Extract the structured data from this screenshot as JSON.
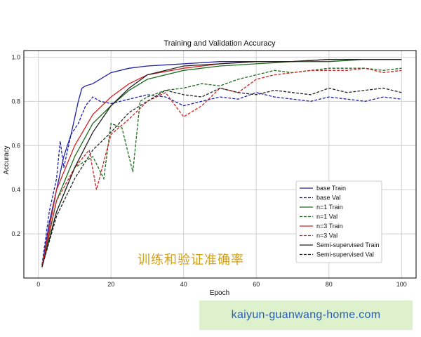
{
  "chart_data": {
    "type": "line",
    "title": "Training and Validation Accuracy",
    "xlabel": "Epoch",
    "ylabel": "Accuracy",
    "xlim": [
      -4,
      104
    ],
    "ylim": [
      0.0,
      1.03
    ],
    "xticks": [
      0,
      20,
      40,
      60,
      80,
      100
    ],
    "yticks": [
      0.2,
      0.4,
      0.6,
      0.8,
      1.0
    ],
    "grid": true,
    "legend_position": "lower-right",
    "series": [
      {
        "name": "base Train",
        "color": "#1f1fa8",
        "dash": "solid",
        "x": [
          1,
          3,
          5,
          7,
          9,
          11,
          12,
          13,
          15,
          20,
          25,
          30,
          40,
          50,
          60,
          70,
          80,
          90,
          100
        ],
        "values": [
          0.05,
          0.25,
          0.4,
          0.55,
          0.65,
          0.8,
          0.86,
          0.87,
          0.88,
          0.93,
          0.95,
          0.96,
          0.97,
          0.98,
          0.98,
          0.98,
          0.99,
          0.99,
          0.99
        ]
      },
      {
        "name": "base Val",
        "color": "#1f1fa8",
        "dash": "dashed",
        "x": [
          1,
          3,
          5,
          6,
          7,
          9,
          11,
          13,
          15,
          17,
          20,
          25,
          30,
          35,
          40,
          45,
          50,
          55,
          60,
          65,
          70,
          75,
          80,
          85,
          90,
          95,
          100
        ],
        "values": [
          0.06,
          0.3,
          0.45,
          0.62,
          0.5,
          0.65,
          0.7,
          0.78,
          0.82,
          0.8,
          0.79,
          0.81,
          0.83,
          0.82,
          0.78,
          0.8,
          0.82,
          0.81,
          0.84,
          0.82,
          0.81,
          0.8,
          0.82,
          0.81,
          0.8,
          0.82,
          0.81
        ]
      },
      {
        "name": "n=1 Train",
        "color": "#1a6b1a",
        "dash": "solid",
        "x": [
          1,
          5,
          10,
          15,
          20,
          25,
          30,
          40,
          50,
          60,
          70,
          80,
          90,
          100
        ],
        "values": [
          0.05,
          0.35,
          0.55,
          0.7,
          0.78,
          0.85,
          0.9,
          0.94,
          0.96,
          0.97,
          0.98,
          0.98,
          0.99,
          0.99
        ]
      },
      {
        "name": "n=1 Val",
        "color": "#1a6b1a",
        "dash": "dashed",
        "x": [
          1,
          5,
          10,
          15,
          18,
          20,
          23,
          26,
          28,
          30,
          35,
          40,
          45,
          50,
          55,
          60,
          65,
          70,
          75,
          80,
          85,
          90,
          95,
          100
        ],
        "values": [
          0.06,
          0.3,
          0.5,
          0.55,
          0.45,
          0.7,
          0.68,
          0.48,
          0.8,
          0.82,
          0.85,
          0.86,
          0.88,
          0.87,
          0.9,
          0.92,
          0.94,
          0.93,
          0.94,
          0.95,
          0.95,
          0.95,
          0.94,
          0.95
        ]
      },
      {
        "name": "n=3 Train",
        "color": "#d42020",
        "dash": "solid",
        "x": [
          1,
          5,
          10,
          15,
          20,
          25,
          30,
          40,
          50,
          60,
          70,
          80,
          90,
          100
        ],
        "values": [
          0.05,
          0.4,
          0.6,
          0.74,
          0.82,
          0.88,
          0.92,
          0.95,
          0.97,
          0.98,
          0.98,
          0.99,
          0.99,
          0.99
        ]
      },
      {
        "name": "n=3 Val",
        "color": "#d42020",
        "dash": "dashed",
        "x": [
          1,
          5,
          10,
          14,
          16,
          20,
          25,
          30,
          35,
          40,
          45,
          50,
          55,
          60,
          65,
          70,
          75,
          80,
          85,
          90,
          95,
          100
        ],
        "values": [
          0.06,
          0.35,
          0.5,
          0.58,
          0.4,
          0.65,
          0.72,
          0.8,
          0.84,
          0.73,
          0.78,
          0.86,
          0.84,
          0.9,
          0.92,
          0.93,
          0.94,
          0.94,
          0.94,
          0.95,
          0.93,
          0.94
        ]
      },
      {
        "name": "Semi-supervised Train",
        "color": "#222222",
        "dash": "solid",
        "x": [
          1,
          5,
          10,
          15,
          20,
          25,
          30,
          40,
          50,
          60,
          70,
          80,
          90,
          100
        ],
        "values": [
          0.05,
          0.3,
          0.5,
          0.66,
          0.78,
          0.86,
          0.92,
          0.96,
          0.97,
          0.98,
          0.98,
          0.99,
          0.99,
          0.99
        ]
      },
      {
        "name": "Semi-supervised Val",
        "color": "#222222",
        "dash": "dashed",
        "x": [
          1,
          5,
          10,
          15,
          20,
          25,
          30,
          35,
          40,
          45,
          50,
          55,
          60,
          65,
          70,
          75,
          80,
          85,
          90,
          95,
          100
        ],
        "values": [
          0.05,
          0.28,
          0.45,
          0.58,
          0.66,
          0.75,
          0.8,
          0.85,
          0.83,
          0.82,
          0.86,
          0.84,
          0.83,
          0.85,
          0.84,
          0.83,
          0.86,
          0.84,
          0.85,
          0.86,
          0.84
        ]
      }
    ]
  },
  "overlay": {
    "watermark_cn": "训练和验证准确率",
    "url": "kaiyun-guanwang-home.com"
  }
}
